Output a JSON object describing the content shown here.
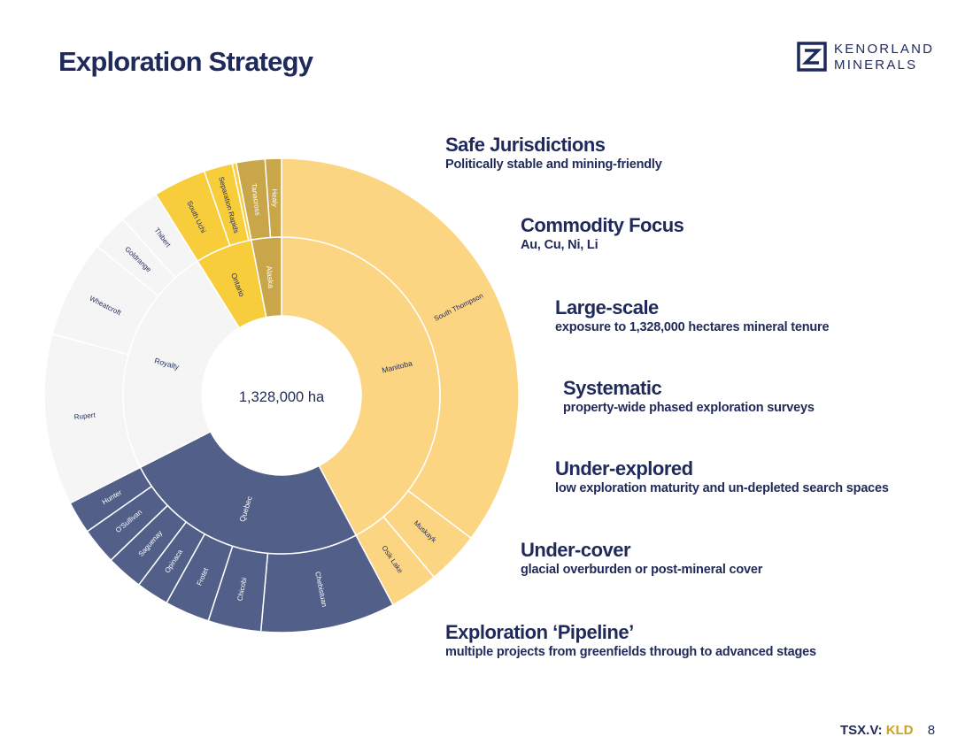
{
  "header": {
    "title": "Exploration Strategy",
    "logo_line1": "KENORLAND",
    "logo_line2": "MINERALS"
  },
  "chart_data": {
    "type": "sunburst",
    "center_label": "1,328,000 ha",
    "colors": {
      "manitoba_inner": "#fcd583",
      "manitoba_outer": "#fcd583",
      "alaska": "#c9a64a",
      "ontario": "#f7cd3c",
      "quebec": "#525f88",
      "royalty": "#f5f5f5",
      "border": "#ffffff",
      "dark_text": "#1f2a5a",
      "light_text": "#ffffff"
    },
    "start_angle_deg": 0,
    "inner": [
      {
        "label": "Manitoba",
        "sweep": 152,
        "color": "manitoba_inner",
        "text": "dark_text"
      },
      {
        "label": "Quebec",
        "sweep": 91,
        "color": "quebec",
        "text": "light_text"
      },
      {
        "label": "Royalty",
        "sweep": 85,
        "color": "royalty",
        "text": "dark_text"
      },
      {
        "label": "Ontario",
        "sweep": 21,
        "color": "ontario",
        "text": "dark_text"
      },
      {
        "label": "Alaska",
        "sweep": 11,
        "color": "alaska",
        "text": "light_text"
      }
    ],
    "outer": [
      {
        "label": "South Thompson",
        "sweep": 127,
        "color": "manitoba_outer",
        "text": "dark_text"
      },
      {
        "label": "Muskayk",
        "sweep": 13,
        "color": "manitoba_outer",
        "text": "dark_text"
      },
      {
        "label": "Osik Lake",
        "sweep": 12,
        "color": "manitoba_outer",
        "text": "dark_text"
      },
      {
        "label": "Chebistuan",
        "sweep": 33,
        "color": "quebec",
        "text": "light_text"
      },
      {
        "label": "Chicobi",
        "sweep": 13,
        "color": "quebec",
        "text": "light_text"
      },
      {
        "label": "Frotet",
        "sweep": 11,
        "color": "quebec",
        "text": "light_text"
      },
      {
        "label": "Opinaca",
        "sweep": 8,
        "color": "quebec",
        "text": "light_text"
      },
      {
        "label": "Saguenay",
        "sweep": 9,
        "color": "quebec",
        "text": "light_text"
      },
      {
        "label": "O'Sullivan",
        "sweep": 9,
        "color": "quebec",
        "text": "light_text"
      },
      {
        "label": "Hunter",
        "sweep": 8,
        "color": "quebec",
        "text": "light_text"
      },
      {
        "label": "Rupert",
        "sweep": 42,
        "color": "royalty",
        "text": "dark_text"
      },
      {
        "label": "Wheatcroft",
        "sweep": 24,
        "color": "royalty",
        "text": "dark_text"
      },
      {
        "label": "Goldrange",
        "sweep": 9,
        "color": "royalty",
        "text": "dark_text"
      },
      {
        "label": "Thibert",
        "sweep": 10,
        "color": "royalty",
        "text": "dark_text"
      },
      {
        "label": "South Uchi",
        "sweep": 13,
        "color": "ontario",
        "text": "dark_text"
      },
      {
        "label": "Separation Rapids",
        "sweep": 7,
        "color": "ontario",
        "text": "dark_text"
      },
      {
        "label": "",
        "sweep": 1,
        "color": "ontario",
        "text": "dark_text"
      },
      {
        "label": "Tanacross",
        "sweep": 7,
        "color": "alaska",
        "text": "light_text"
      },
      {
        "label": "Healy",
        "sweep": 4,
        "color": "alaska",
        "text": "light_text"
      }
    ]
  },
  "pillars": [
    {
      "heading": "Safe Jurisdictions",
      "sub": "Politically stable and mining-friendly"
    },
    {
      "heading": "Commodity Focus",
      "sub": "Au, Cu, Ni, Li"
    },
    {
      "heading": "Large-scale",
      "sub": "exposure to 1,328,000 hectares mineral tenure"
    },
    {
      "heading": "Systematic",
      "sub": "property-wide phased exploration surveys"
    },
    {
      "heading": "Under-explored",
      "sub": "low exploration maturity and un-depleted search spaces"
    },
    {
      "heading": "Under-cover",
      "sub": "glacial overburden or post-mineral cover"
    },
    {
      "heading": "Exploration ‘Pipeline’",
      "sub": "multiple projects from greenfields through to advanced stages"
    }
  ],
  "footer": {
    "exchange": "TSX.V:",
    "ticker": "KLD",
    "page": "8"
  }
}
